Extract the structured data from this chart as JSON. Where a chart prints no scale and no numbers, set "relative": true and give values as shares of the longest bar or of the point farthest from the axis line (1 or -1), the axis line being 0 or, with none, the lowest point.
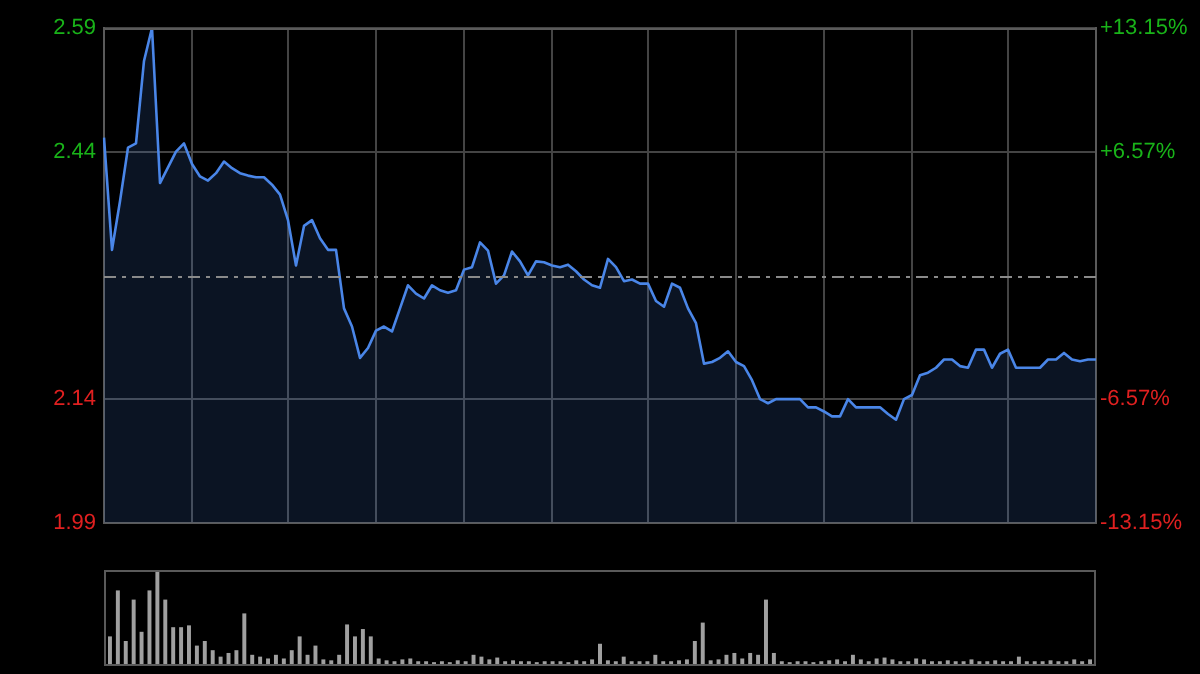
{
  "chart_data": [
    {
      "type": "area",
      "categories": [
        null,
        null,
        null,
        null,
        null,
        null,
        null,
        null,
        null,
        null,
        null,
        null,
        null,
        null,
        null,
        null,
        null,
        null,
        null,
        null,
        null,
        null,
        null,
        null,
        null,
        null,
        null,
        null,
        null,
        null,
        null,
        null,
        null,
        null,
        null,
        null,
        null,
        null,
        null,
        null,
        null,
        null,
        null,
        null,
        null,
        null,
        null,
        null,
        null,
        null,
        null,
        null,
        null,
        null,
        null,
        null,
        null,
        null,
        null,
        null,
        null,
        null,
        null,
        null,
        null,
        null,
        null,
        null,
        null,
        null,
        null,
        null,
        null,
        null,
        null,
        null,
        null,
        null,
        null,
        null,
        null,
        null,
        null,
        null,
        null,
        null,
        null,
        null,
        null,
        null,
        null,
        null,
        null,
        null,
        null,
        null,
        null,
        null,
        null,
        null,
        null,
        null,
        null,
        null,
        null,
        null,
        null,
        null,
        null,
        null,
        null,
        null,
        null,
        null,
        null,
        null,
        null,
        null,
        null,
        null,
        null,
        null,
        null,
        null,
        null
      ],
      "ylim": [
        1.99,
        2.59
      ],
      "yticks": [
        2.59,
        2.44,
        2.14,
        1.99
      ],
      "y2lim": [
        -13.15,
        13.15
      ],
      "y2ticks": [
        {
          "value": 13.15,
          "label": "+13.15%"
        },
        {
          "value": 6.57,
          "label": "+6.57%"
        },
        {
          "value": -6.57,
          "label": "-6.57%"
        },
        {
          "value": -13.15,
          "label": "-13.15%"
        }
      ],
      "grid": true,
      "legend": false,
      "line_style": "solid",
      "ref_lines": [
        {
          "axis": "y",
          "value": 2.29,
          "line_style": "dashed",
          "color": "#8a8a8a"
        }
      ],
      "series": [
        {
          "color": "#4a86e8",
          "values": [
            2.457,
            2.321,
            2.38,
            2.445,
            2.45,
            2.55,
            2.59,
            2.402,
            2.421,
            2.44,
            2.45,
            2.425,
            2.41,
            2.405,
            2.414,
            2.428,
            2.42,
            2.414,
            2.411,
            2.409,
            2.409,
            2.4,
            2.388,
            2.357,
            2.302,
            2.35,
            2.357,
            2.335,
            2.321,
            2.321,
            2.25,
            2.228,
            2.19,
            2.202,
            2.223,
            2.228,
            2.222,
            2.25,
            2.278,
            2.268,
            2.262,
            2.278,
            2.272,
            2.269,
            2.272,
            2.297,
            2.3,
            2.33,
            2.32,
            2.28,
            2.29,
            2.319,
            2.307,
            2.29,
            2.307,
            2.306,
            2.302,
            2.3,
            2.303,
            2.295,
            2.285,
            2.278,
            2.275,
            2.31,
            2.3,
            2.283,
            2.285,
            2.28,
            2.28,
            2.259,
            2.252,
            2.28,
            2.275,
            2.25,
            2.232,
            2.183,
            2.185,
            2.19,
            2.198,
            2.185,
            2.18,
            2.163,
            2.14,
            2.135,
            2.14,
            2.14,
            2.14,
            2.14,
            2.13,
            2.13,
            2.125,
            2.119,
            2.119,
            2.14,
            2.13,
            2.13,
            2.13,
            2.13,
            2.122,
            2.115,
            2.14,
            2.145,
            2.169,
            2.172,
            2.178,
            2.188,
            2.188,
            2.18,
            2.178,
            2.2,
            2.2,
            2.178,
            2.195,
            2.2,
            2.178,
            2.178,
            2.178,
            2.178,
            2.188,
            2.188,
            2.196,
            2.188,
            2.186,
            2.188,
            2.188
          ]
        }
      ]
    },
    {
      "type": "bar",
      "relative": true,
      "legend": false,
      "color": "#a0a0a0",
      "categories": [
        null,
        null,
        null,
        null,
        null,
        null,
        null,
        null,
        null,
        null,
        null,
        null,
        null,
        null,
        null,
        null,
        null,
        null,
        null,
        null,
        null,
        null,
        null,
        null,
        null,
        null,
        null,
        null,
        null,
        null,
        null,
        null,
        null,
        null,
        null,
        null,
        null,
        null,
        null,
        null,
        null,
        null,
        null,
        null,
        null,
        null,
        null,
        null,
        null,
        null,
        null,
        null,
        null,
        null,
        null,
        null,
        null,
        null,
        null,
        null,
        null,
        null,
        null,
        null,
        null,
        null,
        null,
        null,
        null,
        null,
        null,
        null,
        null,
        null,
        null,
        null,
        null,
        null,
        null,
        null,
        null,
        null,
        null,
        null,
        null,
        null,
        null,
        null,
        null,
        null,
        null,
        null,
        null,
        null,
        null,
        null,
        null,
        null,
        null,
        null,
        null,
        null,
        null,
        null,
        null,
        null,
        null,
        null,
        null,
        null,
        null,
        null,
        null,
        null,
        null,
        null,
        null,
        null,
        null,
        null,
        null,
        null,
        null,
        null,
        null
      ],
      "values": [
        0.3,
        0.8,
        0.25,
        0.7,
        0.35,
        0.8,
        1,
        0.7,
        0.4,
        0.4,
        0.42,
        0.2,
        0.25,
        0.15,
        0.08,
        0.12,
        0.15,
        0.55,
        0.1,
        0.08,
        0.06,
        0.1,
        0.06,
        0.15,
        0.3,
        0.1,
        0.2,
        0.05,
        0.04,
        0.1,
        0.43,
        0.3,
        0.38,
        0.3,
        0.06,
        0.04,
        0.03,
        0.05,
        0.06,
        0.03,
        0.03,
        0.02,
        0.03,
        0.02,
        0.04,
        0.03,
        0.1,
        0.08,
        0.05,
        0.07,
        0.03,
        0.04,
        0.03,
        0.03,
        0.02,
        0.03,
        0.03,
        0.03,
        0.02,
        0.04,
        0.03,
        0.05,
        0.22,
        0.04,
        0.03,
        0.08,
        0.03,
        0.03,
        0.03,
        0.1,
        0.03,
        0.03,
        0.04,
        0.05,
        0.25,
        0.45,
        0.04,
        0.05,
        0.1,
        0.12,
        0.06,
        0.12,
        0.1,
        0.7,
        0.12,
        0.03,
        0.02,
        0.03,
        0.03,
        0.02,
        0.03,
        0.04,
        0.05,
        0.03,
        0.1,
        0.05,
        0.03,
        0.06,
        0.07,
        0.05,
        0.03,
        0.03,
        0.06,
        0.05,
        0.03,
        0.03,
        0.04,
        0.03,
        0.03,
        0.05,
        0.03,
        0.03,
        0.04,
        0.03,
        0.03,
        0.08,
        0.03,
        0.03,
        0.03,
        0.04,
        0.03,
        0.03,
        0.05,
        0.03,
        0.05
      ]
    }
  ]
}
